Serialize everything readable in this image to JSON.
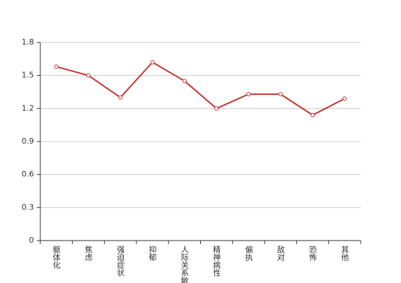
{
  "chart_data": {
    "type": "line",
    "categories": [
      "躯体化",
      "焦虑",
      "强迫症状",
      "抑郁",
      "人际关系敏感",
      "精神病性",
      "偏执",
      "敌对",
      "恐怖",
      "其他"
    ],
    "series": [
      {
        "color": "#c23531",
        "values": [
          1.58,
          1.5,
          1.3,
          1.62,
          1.45,
          1.2,
          1.33,
          1.33,
          1.14,
          1.29
        ]
      }
    ],
    "ylim": [
      0,
      1.8
    ],
    "yticks": [
      0,
      0.3,
      0.6,
      0.9,
      1.2,
      1.5,
      1.8
    ],
    "grid": true
  }
}
